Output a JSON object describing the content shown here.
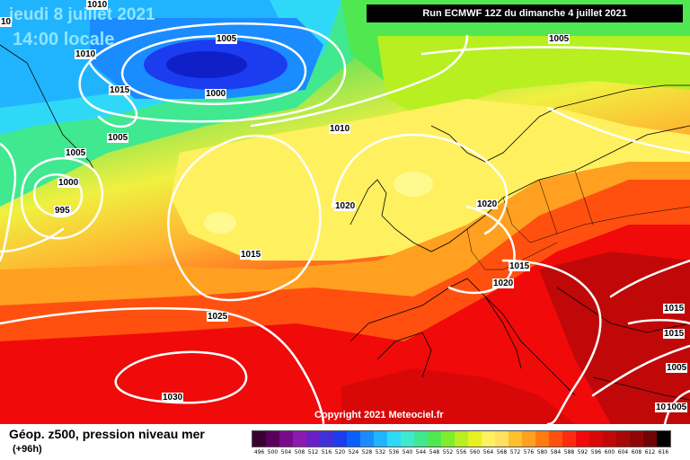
{
  "header": {
    "date": "jeudi 8 juillet 2021",
    "time": "14:00 locale",
    "run": "Run ECMWF 12Z du dimanche 4 juillet 2021"
  },
  "copyright": "Copyright 2021 Meteociel.fr",
  "legend": {
    "title": "Géop. z500, pression niveau mer",
    "forecast_step": "(+96h)",
    "scale_values": [
      "496",
      "500",
      "504",
      "508",
      "512",
      "516",
      "520",
      "524",
      "528",
      "532",
      "536",
      "540",
      "544",
      "548",
      "552",
      "556",
      "560",
      "564",
      "568",
      "572",
      "576",
      "580",
      "584",
      "588",
      "592",
      "596",
      "600",
      "604",
      "608",
      "612",
      "616"
    ],
    "scale_colors": [
      "#3a0030",
      "#5a005a",
      "#7a0a8a",
      "#8c1ab0",
      "#6a20c8",
      "#4030d8",
      "#1c3cf0",
      "#0a60ff",
      "#1a8cff",
      "#20b4ff",
      "#30d8f8",
      "#40e8d0",
      "#40e890",
      "#50e850",
      "#80ec30",
      "#b8ef20",
      "#e8f020",
      "#fff060",
      "#ffe060",
      "#ffc030",
      "#ffa020",
      "#ff7a10",
      "#ff5010",
      "#ff2a10",
      "#f00a0a",
      "#d80808",
      "#c00808",
      "#a80808",
      "#900606",
      "#700404",
      "#000000"
    ]
  },
  "isobar_labels": [
    {
      "text": "1010",
      "id": "iso-1010-a"
    },
    {
      "text": "1005",
      "id": "iso-1005-a"
    },
    {
      "text": "1010",
      "id": "iso-1010-b"
    },
    {
      "text": "1015",
      "id": "iso-1015-a"
    },
    {
      "text": "1000",
      "id": "iso-1000-a"
    },
    {
      "text": "1005",
      "id": "iso-1005-b"
    },
    {
      "text": "1005",
      "id": "iso-1005-c"
    },
    {
      "text": "1000",
      "id": "iso-1000-b"
    },
    {
      "text": "995",
      "id": "iso-995"
    },
    {
      "text": "1010",
      "id": "iso-1010-c"
    },
    {
      "text": "1020",
      "id": "iso-1020-a"
    },
    {
      "text": "1020",
      "id": "iso-1020-b"
    },
    {
      "text": "1015",
      "id": "iso-1015-b"
    },
    {
      "text": "1015",
      "id": "iso-1015-c"
    },
    {
      "text": "1020",
      "id": "iso-1020-c"
    },
    {
      "text": "1025",
      "id": "iso-1025"
    },
    {
      "text": "1030",
      "id": "iso-1030"
    },
    {
      "text": "1015",
      "id": "iso-1015-d"
    },
    {
      "text": "1015",
      "id": "iso-1015-e"
    },
    {
      "text": "1005",
      "id": "iso-1005-d"
    },
    {
      "text": "1005",
      "id": "iso-1005-e"
    },
    {
      "text": "10",
      "id": "iso-10-left"
    },
    {
      "text": "1005",
      "id": "iso-1005-f"
    },
    {
      "text": "10",
      "id": "iso-10-right"
    }
  ]
}
